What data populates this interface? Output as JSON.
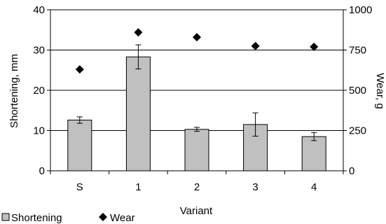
{
  "chart_data": {
    "type": "bar",
    "categories": [
      "S",
      "1",
      "2",
      "3",
      "4"
    ],
    "xlabel": "Variant",
    "ylabel": "Shortening, mm",
    "y2label": "Wear, g",
    "ylim": [
      0,
      40
    ],
    "y2lim": [
      0,
      1000
    ],
    "yticks": [
      "0",
      "10",
      "20",
      "30",
      "40"
    ],
    "y2ticks": [
      "0",
      "250",
      "500",
      "750",
      "1000"
    ],
    "grid": "horizontal",
    "legend_position": "bottom-left",
    "series": [
      {
        "name": "Shortening",
        "type": "bar",
        "axis": "left",
        "color": "#c0c0c0",
        "values": [
          12.6,
          28.3,
          10.3,
          11.5,
          8.5
        ],
        "errors": [
          0.8,
          3.0,
          0.5,
          2.9,
          1.0
        ]
      },
      {
        "name": "Wear",
        "type": "scatter",
        "marker": "diamond",
        "axis": "right",
        "color": "#000000",
        "values": [
          630,
          860,
          830,
          775,
          770
        ]
      }
    ]
  }
}
